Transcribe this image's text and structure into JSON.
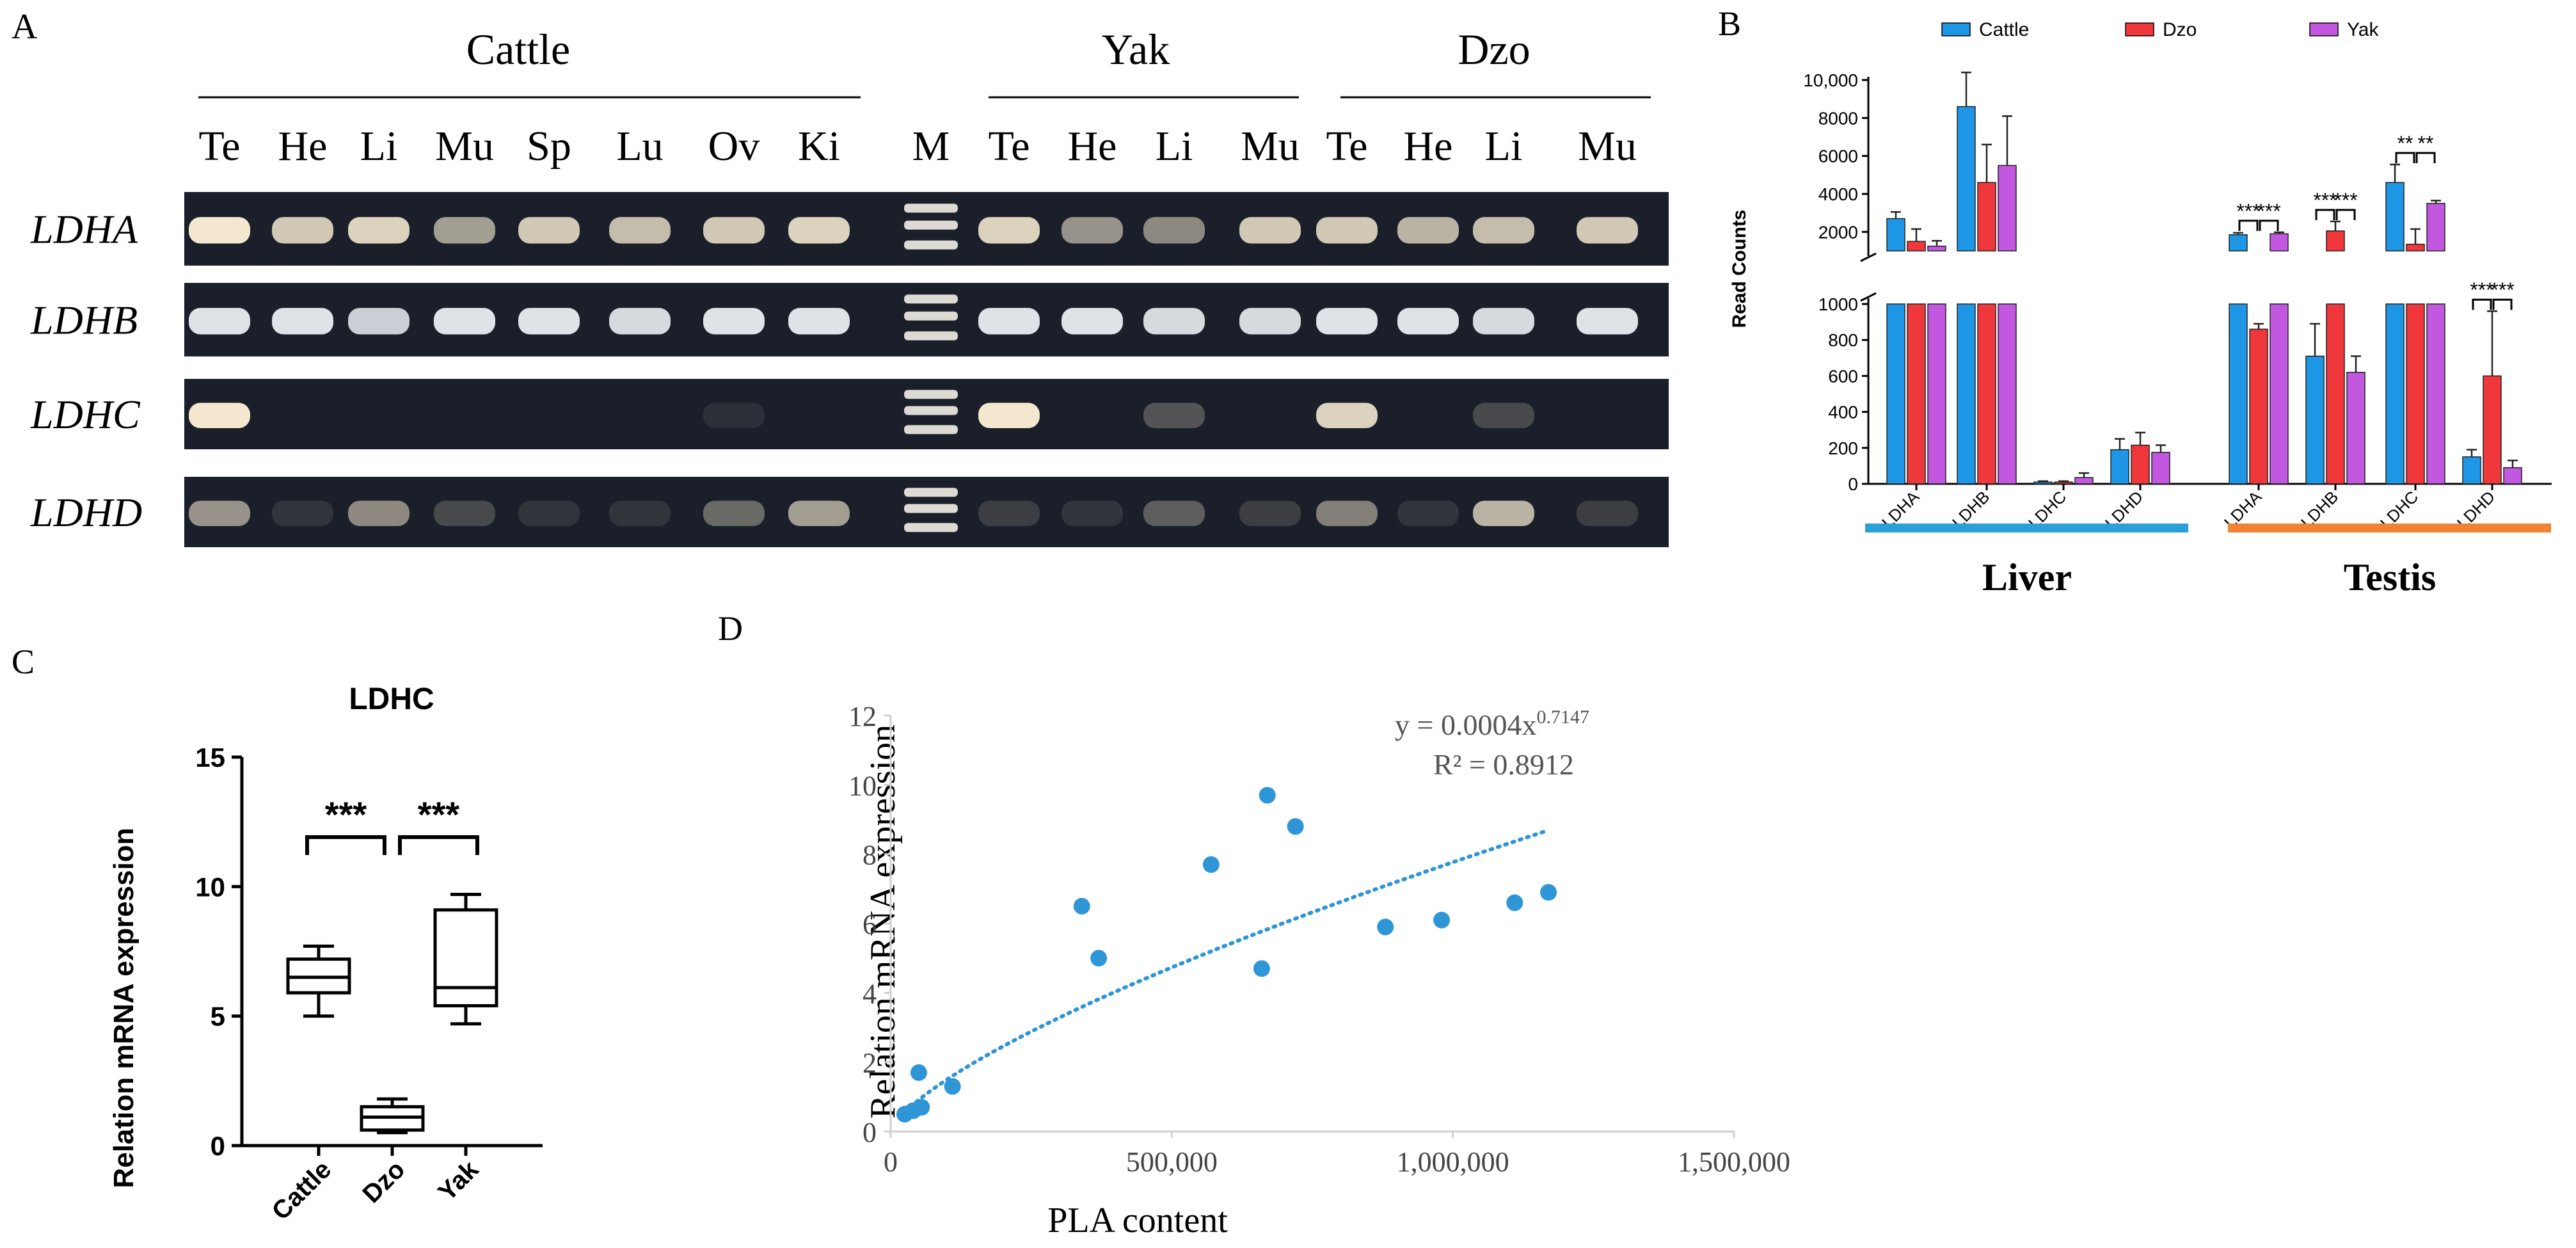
{
  "colors": {
    "cattle": "#1E96E6",
    "dzo": "#F0383C",
    "yak": "#C257E0",
    "liver_bar": "#2A9FD8",
    "testis_bar": "#F08232",
    "scatter": "#2E95D6",
    "gel_bg": "#1a1f2a"
  },
  "panel_a": {
    "panel_label": "A",
    "groups": [
      "Cattle",
      "Yak",
      "Dzo"
    ],
    "lanes": [
      "Te",
      "He",
      "Li",
      "Mu",
      "Sp",
      "Lu",
      "Ov",
      "Ki",
      "M",
      "Te",
      "He",
      "Li",
      "Mu",
      "Te",
      "He",
      "Li",
      "Mu"
    ],
    "genes": [
      "LDHA",
      "LDHB",
      "LDHC",
      "LDHD"
    ],
    "band_intensity": [
      [
        0.95,
        0.8,
        0.85,
        0.6,
        0.8,
        0.75,
        0.8,
        0.85,
        0,
        0.85,
        0.55,
        0.5,
        0.8,
        0.8,
        0.7,
        0.75,
        0.8
      ],
      [
        0.95,
        0.95,
        0.85,
        0.95,
        0.95,
        0.9,
        0.95,
        0.95,
        0,
        0.95,
        0.95,
        0.9,
        0.9,
        0.95,
        0.95,
        0.9,
        0.95
      ],
      [
        0.95,
        0.05,
        0.05,
        0.05,
        0.05,
        0.05,
        0.08,
        0.05,
        0,
        0.95,
        0.05,
        0.25,
        0.05,
        0.85,
        0.05,
        0.2,
        0.05
      ],
      [
        0.55,
        0.1,
        0.5,
        0.2,
        0.1,
        0.1,
        0.35,
        0.6,
        0,
        0.15,
        0.1,
        0.3,
        0.15,
        0.45,
        0.1,
        0.7,
        0.15
      ]
    ]
  },
  "chart_data": [
    {
      "panel_label": "B",
      "type": "bar",
      "ylabel": "Read Counts",
      "y_lower_range": [
        0,
        1000
      ],
      "y_upper_range": [
        1000,
        10000
      ],
      "y_lower_ticks": [
        "0",
        "200",
        "400",
        "600",
        "800",
        "1000"
      ],
      "y_upper_ticks": [
        "2000",
        "4000",
        "6000",
        "8000",
        "10,000"
      ],
      "categories": [
        "LDHA",
        "LDHB",
        "LDHC",
        "LDHD",
        "LDHA",
        "LDHB",
        "LDHC",
        "LDHD"
      ],
      "groups": [
        "Liver",
        "Testis"
      ],
      "series": [
        {
          "name": "Cattle",
          "values": [
            2700,
            8600,
            10,
            190,
            1850,
            710,
            4600,
            150
          ],
          "errors": [
            350,
            1800,
            5,
            60,
            100,
            180,
            950,
            40
          ]
        },
        {
          "name": "Dzo",
          "values": [
            1500,
            4600,
            10,
            215,
            860,
            2050,
            1350,
            600
          ],
          "errors": [
            650,
            2000,
            5,
            70,
            30,
            500,
            800,
            360
          ]
        },
        {
          "name": "Yak",
          "values": [
            1250,
            5500,
            35,
            175,
            1900,
            620,
            3500,
            90
          ],
          "errors": [
            280,
            2600,
            25,
            40,
            80,
            90,
            150,
            40
          ]
        }
      ],
      "significance": [
        "***",
        "***",
        "***",
        "***",
        "**",
        "**",
        "***",
        "***"
      ]
    },
    {
      "panel_label": "C",
      "type": "box",
      "title": "LDHC",
      "ylabel": "Relation mRNA expression",
      "ylim": [
        0,
        15
      ],
      "yticks": [
        "0",
        "5",
        "10",
        "15"
      ],
      "categories": [
        "Cattle",
        "Dzo",
        "Yak"
      ],
      "boxes": [
        {
          "min": 5.0,
          "q1": 5.9,
          "median": 6.5,
          "q3": 7.2,
          "max": 7.7
        },
        {
          "min": 0.5,
          "q1": 0.6,
          "median": 1.1,
          "q3": 1.5,
          "max": 1.8
        },
        {
          "min": 4.7,
          "q1": 5.4,
          "median": 6.1,
          "q3": 9.1,
          "max": 9.7
        }
      ],
      "significance": [
        "***",
        "***"
      ]
    },
    {
      "panel_label": "D",
      "type": "scatter",
      "xlabel": "PLA content",
      "ylabel": "Relation mRNA expression",
      "xlim": [
        0,
        1500000
      ],
      "ylim": [
        0,
        12
      ],
      "xticks": [
        "0",
        "500,000",
        "1,000,000",
        "1,500,000"
      ],
      "yticks": [
        "0",
        "2",
        "4",
        "6",
        "8",
        "10",
        "12"
      ],
      "equation": "y = 0.0004x",
      "exponent": "0.7147",
      "r2": "R² = 0.8912",
      "fit": {
        "a": 0.0004,
        "b": 0.7147,
        "x_from": 25000,
        "x_to": 1170000
      },
      "points": [
        [
          25000,
          0.5
        ],
        [
          40000,
          0.6
        ],
        [
          55000,
          0.7
        ],
        [
          50000,
          1.7
        ],
        [
          110000,
          1.3
        ],
        [
          340000,
          6.5
        ],
        [
          370000,
          5.0
        ],
        [
          570000,
          7.7
        ],
        [
          660000,
          4.7
        ],
        [
          670000,
          9.7
        ],
        [
          720000,
          8.8
        ],
        [
          880000,
          5.9
        ],
        [
          980000,
          6.1
        ],
        [
          1110000,
          6.6
        ],
        [
          1170000,
          6.9
        ]
      ]
    }
  ]
}
